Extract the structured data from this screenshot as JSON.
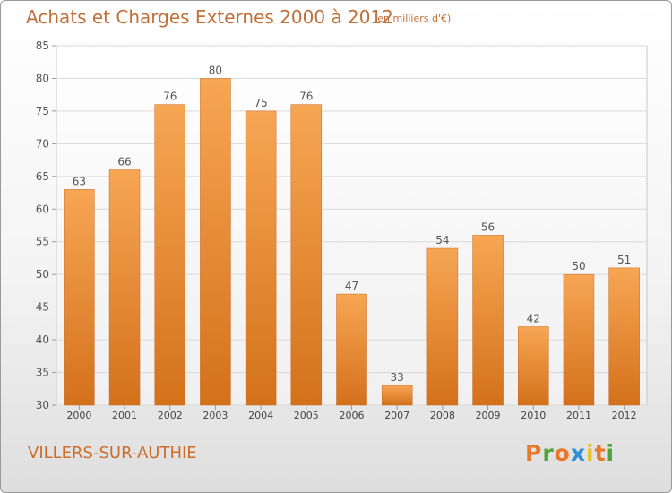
{
  "header": {
    "title": "Achats et Charges Externes 2000 à 2012",
    "subtitle": "(en milliers d'€)"
  },
  "footer": {
    "commune": "VILLERS-SUR-AUTHIE",
    "logo_text": "Proxiti"
  },
  "colors": {
    "bar_top": "#f7a654",
    "bar_bottom": "#d4711b",
    "title": "#c0703a",
    "commune": "#cc6d2e",
    "logo_letters": [
      "#e8782a",
      "#4fa43a",
      "#e8782a",
      "#2f8fd6",
      "#e8c32a",
      "#e8782a",
      "#4fa43a"
    ]
  },
  "chart_data": {
    "type": "bar",
    "title": "Achats et Charges Externes 2000 à 2012",
    "subtitle": "(en milliers d'€)",
    "categories": [
      "2000",
      "2001",
      "2002",
      "2003",
      "2004",
      "2005",
      "2006",
      "2007",
      "2008",
      "2009",
      "2010",
      "2011",
      "2012"
    ],
    "values": [
      63,
      66,
      76,
      80,
      75,
      76,
      47,
      33,
      54,
      56,
      42,
      50,
      51
    ],
    "ylim": [
      30,
      85
    ],
    "yticks": [
      30,
      35,
      40,
      45,
      50,
      55,
      60,
      65,
      70,
      75,
      80,
      85
    ],
    "grid": true,
    "data_labels": true
  }
}
